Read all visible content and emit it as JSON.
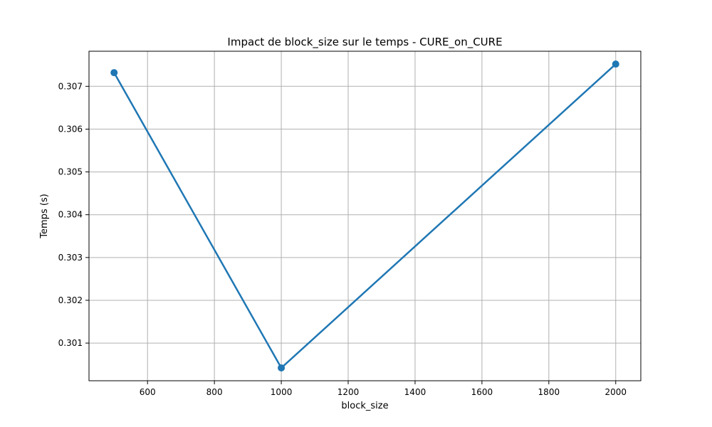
{
  "chart_data": {
    "type": "line",
    "title": "Impact de block_size sur le temps - CURE_on_CURE",
    "xlabel": "block_size",
    "ylabel": "Temps (s)",
    "x": [
      500,
      1000,
      2000
    ],
    "series": [
      {
        "values": [
          0.30732,
          0.30042,
          0.30752
        ],
        "color": "#1f77b4",
        "marker": "circle"
      }
    ],
    "xlim": [
      425,
      2075
    ],
    "ylim": [
      0.30012,
      0.30782
    ],
    "xticks": [
      600,
      800,
      1000,
      1200,
      1400,
      1600,
      1800,
      2000
    ],
    "yticks": [
      0.301,
      0.302,
      0.303,
      0.304,
      0.305,
      0.306,
      0.307
    ],
    "xtick_labels": [
      "600",
      "800",
      "1000",
      "1200",
      "1400",
      "1600",
      "1800",
      "2000"
    ],
    "ytick_labels": [
      "0.301",
      "0.302",
      "0.303",
      "0.304",
      "0.305",
      "0.306",
      "0.307"
    ],
    "grid": true,
    "colors": {
      "grid": "#b0b0b0",
      "axis": "#000000"
    }
  }
}
